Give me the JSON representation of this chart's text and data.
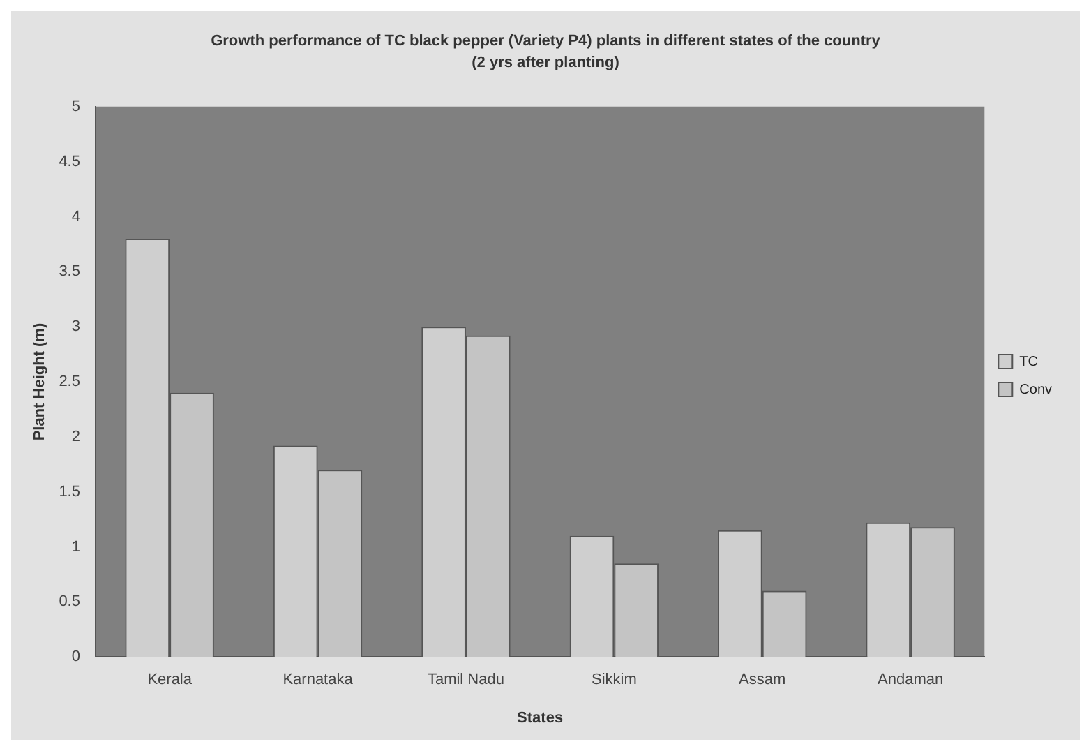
{
  "chart_data": {
    "type": "bar",
    "title": "Growth performance of TC black pepper (Variety P4) plants in different states of the country",
    "subtitle": "(2 yrs after planting)",
    "xlabel": "States",
    "ylabel": "Plant Height (m)",
    "categories": [
      "Kerala",
      "Karnataka",
      "Tamil Nadu",
      "Sikkim",
      "Assam",
      "Andaman"
    ],
    "series": [
      {
        "name": "TC",
        "color": "#cfcfcf",
        "values": [
          3.8,
          1.92,
          3.0,
          1.1,
          1.15,
          1.22
        ]
      },
      {
        "name": "Conv",
        "color": "#c4c4c4",
        "values": [
          2.4,
          1.7,
          2.92,
          0.85,
          0.6,
          1.18
        ]
      }
    ],
    "ylim": [
      0,
      5
    ],
    "yticks": [
      0,
      0.5,
      1,
      1.5,
      2,
      2.5,
      3,
      3.5,
      4,
      4.5,
      5
    ],
    "grid": false,
    "legend": "right"
  }
}
